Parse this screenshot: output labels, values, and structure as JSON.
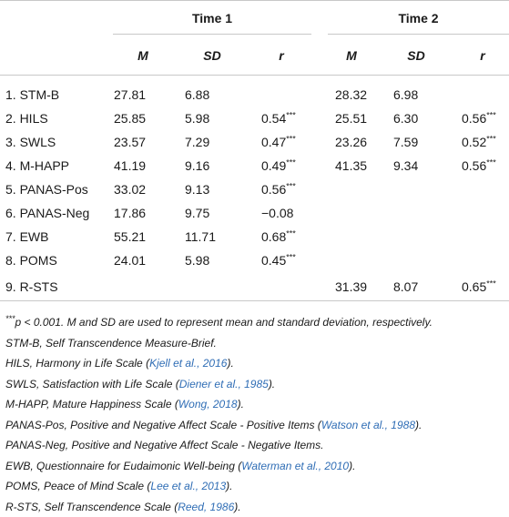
{
  "headers": {
    "time1": "Time 1",
    "time2": "Time 2",
    "cols": [
      "M",
      "SD",
      "r",
      "M",
      "SD",
      "r"
    ]
  },
  "rows": [
    {
      "label": "1. STM-B",
      "t1m": "27.81",
      "t1sd": "6.88",
      "t1r": "",
      "t1sig": "",
      "t2m": "28.32",
      "t2sd": "6.98",
      "t2r": "",
      "t2sig": ""
    },
    {
      "label": "2. HILS",
      "t1m": "25.85",
      "t1sd": "5.98",
      "t1r": "0.54",
      "t1sig": "***",
      "t2m": "25.51",
      "t2sd": "6.30",
      "t2r": "0.56",
      "t2sig": "***"
    },
    {
      "label": "3. SWLS",
      "t1m": "23.57",
      "t1sd": "7.29",
      "t1r": "0.47",
      "t1sig": "***",
      "t2m": "23.26",
      "t2sd": "7.59",
      "t2r": "0.52",
      "t2sig": "***"
    },
    {
      "label": "4. M-HAPP",
      "t1m": "41.19",
      "t1sd": "9.16",
      "t1r": "0.49",
      "t1sig": "***",
      "t2m": "41.35",
      "t2sd": "9.34",
      "t2r": "0.56",
      "t2sig": "***"
    },
    {
      "label": "5. PANAS-Pos",
      "t1m": "33.02",
      "t1sd": "9.13",
      "t1r": "0.56",
      "t1sig": "***",
      "t2m": "",
      "t2sd": "",
      "t2r": "",
      "t2sig": ""
    },
    {
      "label": "6. PANAS-Neg",
      "t1m": "17.86",
      "t1sd": "9.75",
      "t1r": "−0.08",
      "t1sig": "",
      "t2m": "",
      "t2sd": "",
      "t2r": "",
      "t2sig": ""
    },
    {
      "label": "7. EWB",
      "t1m": "55.21",
      "t1sd": "11.71",
      "t1r": "0.68",
      "t1sig": "***",
      "t2m": "",
      "t2sd": "",
      "t2r": "",
      "t2sig": ""
    },
    {
      "label": "8. POMS",
      "t1m": "24.01",
      "t1sd": "5.98",
      "t1r": "0.45",
      "t1sig": "***",
      "t2m": "",
      "t2sd": "",
      "t2r": "",
      "t2sig": ""
    },
    {
      "label": "9. R-STS",
      "t1m": "",
      "t1sd": "",
      "t1r": "",
      "t1sig": "",
      "t2m": "31.39",
      "t2sd": "8.07",
      "t2r": "0.65",
      "t2sig": "***"
    }
  ],
  "notes": {
    "n0_sig": "***",
    "n0_text": "p < 0.001. M and SD are used to represent mean and standard deviation, respectively.",
    "n1": "STM-B, Self Transcendence Measure-Brief.",
    "n2_text": "HILS, Harmony in Life Scale (",
    "n2_cite": "Kjell et al., 2016",
    "n3_text": "SWLS, Satisfaction with Life Scale (",
    "n3_cite": "Diener et al., 1985",
    "n4_text": "M-HAPP, Mature Happiness Scale (",
    "n4_cite": "Wong, 2018",
    "n5_text": "PANAS-Pos, Positive and Negative Affect Scale - Positive Items (",
    "n5_cite": "Watson et al., 1988",
    "n6": "PANAS-Neg, Positive and Negative Affect Scale - Negative Items.",
    "n7_text": "EWB, Questionnaire for Eudaimonic Well-being (",
    "n7_cite": "Waterman et al., 2010",
    "n8_text": "POMS, Peace of Mind Scale (",
    "n8_cite": "Lee et al., 2013",
    "n9_text": "R-STS, Self Transcendence Scale (",
    "n9_cite": "Reed, 1986",
    "close": ").",
    "accent_color": "#2f6db5"
  }
}
